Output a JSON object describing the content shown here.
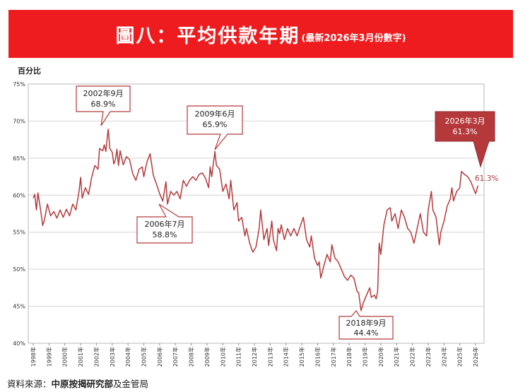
{
  "header": {
    "title": "圖八：平均供款年期",
    "subtitle": "(最新2026年3月份數字)"
  },
  "colors": {
    "banner": "#ee1c1f",
    "line": "#b5393b",
    "latest_box": "#b5393b"
  },
  "source": {
    "prefix": "資料來源：",
    "org": "中原按揭研究部",
    "suffix": "及金管局"
  },
  "chart_data": {
    "type": "line",
    "title": "圖八：平均供款年期",
    "ylabel": "百分比",
    "xlabel": "",
    "ylim": [
      40,
      75
    ],
    "y_ticks": [
      "40%",
      "45%",
      "50%",
      "55%",
      "60%",
      "65%",
      "70%",
      "75%"
    ],
    "x_ticks": [
      "1998年",
      "1999年",
      "2000年",
      "2001年",
      "2002年",
      "2003年",
      "2004年",
      "2005年",
      "2006年",
      "2007年",
      "2008年",
      "2009年",
      "2010年",
      "2011年",
      "2012年",
      "2013年",
      "2014年",
      "2015年",
      "2016年",
      "2017年",
      "2018年",
      "2019年",
      "2020年",
      "2021年",
      "2022年",
      "2023年",
      "2024年",
      "2025年",
      "2026年"
    ],
    "grid": true,
    "series": [
      {
        "points": [
          [
            1998.0,
            59.6
          ],
          [
            1998.1,
            60.1
          ],
          [
            1998.2,
            58.0
          ],
          [
            1998.3,
            60.3
          ],
          [
            1998.4,
            59.0
          ],
          [
            1998.5,
            57.5
          ],
          [
            1998.6,
            55.9
          ],
          [
            1998.7,
            56.6
          ],
          [
            1998.9,
            58.8
          ],
          [
            1999.1,
            57.2
          ],
          [
            1999.3,
            57.8
          ],
          [
            1999.5,
            56.9
          ],
          [
            1999.7,
            58.0
          ],
          [
            1999.9,
            57.0
          ],
          [
            2000.1,
            58.1
          ],
          [
            2000.3,
            57.2
          ],
          [
            2000.5,
            58.8
          ],
          [
            2000.7,
            58.0
          ],
          [
            2000.9,
            60.5
          ],
          [
            2001.0,
            62.4
          ],
          [
            2001.1,
            59.6
          ],
          [
            2001.3,
            61.0
          ],
          [
            2001.5,
            60.1
          ],
          [
            2001.7,
            62.4
          ],
          [
            2001.9,
            64.0
          ],
          [
            2002.1,
            63.5
          ],
          [
            2002.2,
            66.3
          ],
          [
            2002.4,
            66.0
          ],
          [
            2002.5,
            66.8
          ],
          [
            2002.6,
            65.9
          ],
          [
            2002.7,
            68.1
          ],
          [
            2002.75,
            68.9
          ],
          [
            2002.85,
            66.3
          ],
          [
            2003.0,
            65.8
          ],
          [
            2003.1,
            64.2
          ],
          [
            2003.2,
            64.8
          ],
          [
            2003.3,
            66.2
          ],
          [
            2003.4,
            64.0
          ],
          [
            2003.5,
            66.0
          ],
          [
            2003.7,
            64.1
          ],
          [
            2003.9,
            65.2
          ],
          [
            2004.1,
            64.8
          ],
          [
            2004.3,
            62.9
          ],
          [
            2004.5,
            62.0
          ],
          [
            2004.7,
            63.5
          ],
          [
            2004.9,
            63.8
          ],
          [
            2005.0,
            62.5
          ],
          [
            2005.2,
            64.5
          ],
          [
            2005.4,
            65.6
          ],
          [
            2005.6,
            62.7
          ],
          [
            2005.8,
            61.5
          ],
          [
            2006.0,
            60.2
          ],
          [
            2006.2,
            59.2
          ],
          [
            2006.4,
            61.8
          ],
          [
            2006.5,
            58.8
          ],
          [
            2006.7,
            60.5
          ],
          [
            2006.9,
            60.0
          ],
          [
            2007.1,
            60.5
          ],
          [
            2007.3,
            59.5
          ],
          [
            2007.5,
            62.0
          ],
          [
            2007.7,
            61.2
          ],
          [
            2007.9,
            62.0
          ],
          [
            2008.1,
            62.5
          ],
          [
            2008.3,
            62.0
          ],
          [
            2008.5,
            62.8
          ],
          [
            2008.7,
            63.0
          ],
          [
            2008.9,
            62.3
          ],
          [
            2009.1,
            61.0
          ],
          [
            2009.2,
            63.8
          ],
          [
            2009.3,
            62.5
          ],
          [
            2009.5,
            65.9
          ],
          [
            2009.6,
            64.0
          ],
          [
            2009.8,
            63.5
          ],
          [
            2010.0,
            60.5
          ],
          [
            2010.2,
            61.5
          ],
          [
            2010.4,
            59.5
          ],
          [
            2010.5,
            62.0
          ],
          [
            2010.7,
            58.0
          ],
          [
            2010.9,
            59.0
          ],
          [
            2011.0,
            56.5
          ],
          [
            2011.2,
            57.0
          ],
          [
            2011.4,
            54.5
          ],
          [
            2011.5,
            55.5
          ],
          [
            2011.7,
            53.5
          ],
          [
            2011.9,
            52.3
          ],
          [
            2012.1,
            53.0
          ],
          [
            2012.3,
            55.5
          ],
          [
            2012.4,
            58.0
          ],
          [
            2012.6,
            54.0
          ],
          [
            2012.8,
            55.5
          ],
          [
            2012.9,
            53.2
          ],
          [
            2013.1,
            56.5
          ],
          [
            2013.2,
            54.0
          ],
          [
            2013.4,
            52.5
          ],
          [
            2013.5,
            55.5
          ],
          [
            2013.6,
            54.8
          ],
          [
            2013.7,
            56.0
          ],
          [
            2013.9,
            54.0
          ],
          [
            2014.1,
            55.5
          ],
          [
            2014.3,
            54.5
          ],
          [
            2014.5,
            55.5
          ],
          [
            2014.7,
            54.5
          ],
          [
            2014.9,
            55.8
          ],
          [
            2015.1,
            57.0
          ],
          [
            2015.3,
            54.0
          ],
          [
            2015.5,
            53.0
          ],
          [
            2015.6,
            54.5
          ],
          [
            2015.8,
            51.5
          ],
          [
            2016.0,
            50.5
          ],
          [
            2016.1,
            51.0
          ],
          [
            2016.2,
            48.8
          ],
          [
            2016.4,
            50.5
          ],
          [
            2016.6,
            52.0
          ],
          [
            2016.8,
            51.0
          ],
          [
            2016.9,
            53.3
          ],
          [
            2017.1,
            51.5
          ],
          [
            2017.3,
            51.0
          ],
          [
            2017.5,
            50.0
          ],
          [
            2017.7,
            49.0
          ],
          [
            2017.9,
            48.5
          ],
          [
            2018.1,
            49.2
          ],
          [
            2018.3,
            48.8
          ],
          [
            2018.5,
            47.0
          ],
          [
            2018.6,
            46.8
          ],
          [
            2018.75,
            44.4
          ],
          [
            2018.9,
            45.5
          ],
          [
            2019.1,
            46.5
          ],
          [
            2019.3,
            47.5
          ],
          [
            2019.4,
            46.2
          ],
          [
            2019.6,
            46.5
          ],
          [
            2019.7,
            46.0
          ],
          [
            2019.8,
            47.0
          ],
          [
            2019.9,
            53.5
          ],
          [
            2020.0,
            52.0
          ],
          [
            2020.2,
            56.0
          ],
          [
            2020.4,
            58.0
          ],
          [
            2020.6,
            58.3
          ],
          [
            2020.7,
            56.5
          ],
          [
            2020.9,
            57.5
          ],
          [
            2021.1,
            55.5
          ],
          [
            2021.3,
            58.0
          ],
          [
            2021.5,
            57.0
          ],
          [
            2021.7,
            55.5
          ],
          [
            2021.9,
            55.0
          ],
          [
            2022.1,
            53.5
          ],
          [
            2022.3,
            55.5
          ],
          [
            2022.5,
            57.5
          ],
          [
            2022.7,
            55.0
          ],
          [
            2022.9,
            54.5
          ],
          [
            2023.0,
            58.0
          ],
          [
            2023.2,
            60.5
          ],
          [
            2023.3,
            58.0
          ],
          [
            2023.5,
            57.0
          ],
          [
            2023.7,
            53.3
          ],
          [
            2023.8,
            55.0
          ],
          [
            2024.0,
            56.5
          ],
          [
            2024.2,
            58.5
          ],
          [
            2024.4,
            59.5
          ],
          [
            2024.5,
            61.0
          ],
          [
            2024.6,
            59.2
          ],
          [
            2024.8,
            60.5
          ],
          [
            2025.0,
            61.0
          ],
          [
            2025.1,
            63.2
          ],
          [
            2025.3,
            62.8
          ],
          [
            2025.5,
            62.5
          ],
          [
            2025.7,
            61.8
          ],
          [
            2025.9,
            60.7
          ],
          [
            2026.0,
            60.2
          ],
          [
            2026.15,
            61.3
          ]
        ]
      }
    ],
    "annotations": [
      {
        "label": "2002年9月",
        "value": "68.9%"
      },
      {
        "label": "2006年7月",
        "value": "58.8%"
      },
      {
        "label": "2009年6月",
        "value": "65.9%"
      },
      {
        "label": "2018年9月",
        "value": "44.4%"
      },
      {
        "label": "2026年3月",
        "value": "61.3%"
      }
    ],
    "end_label": "61.3%"
  }
}
